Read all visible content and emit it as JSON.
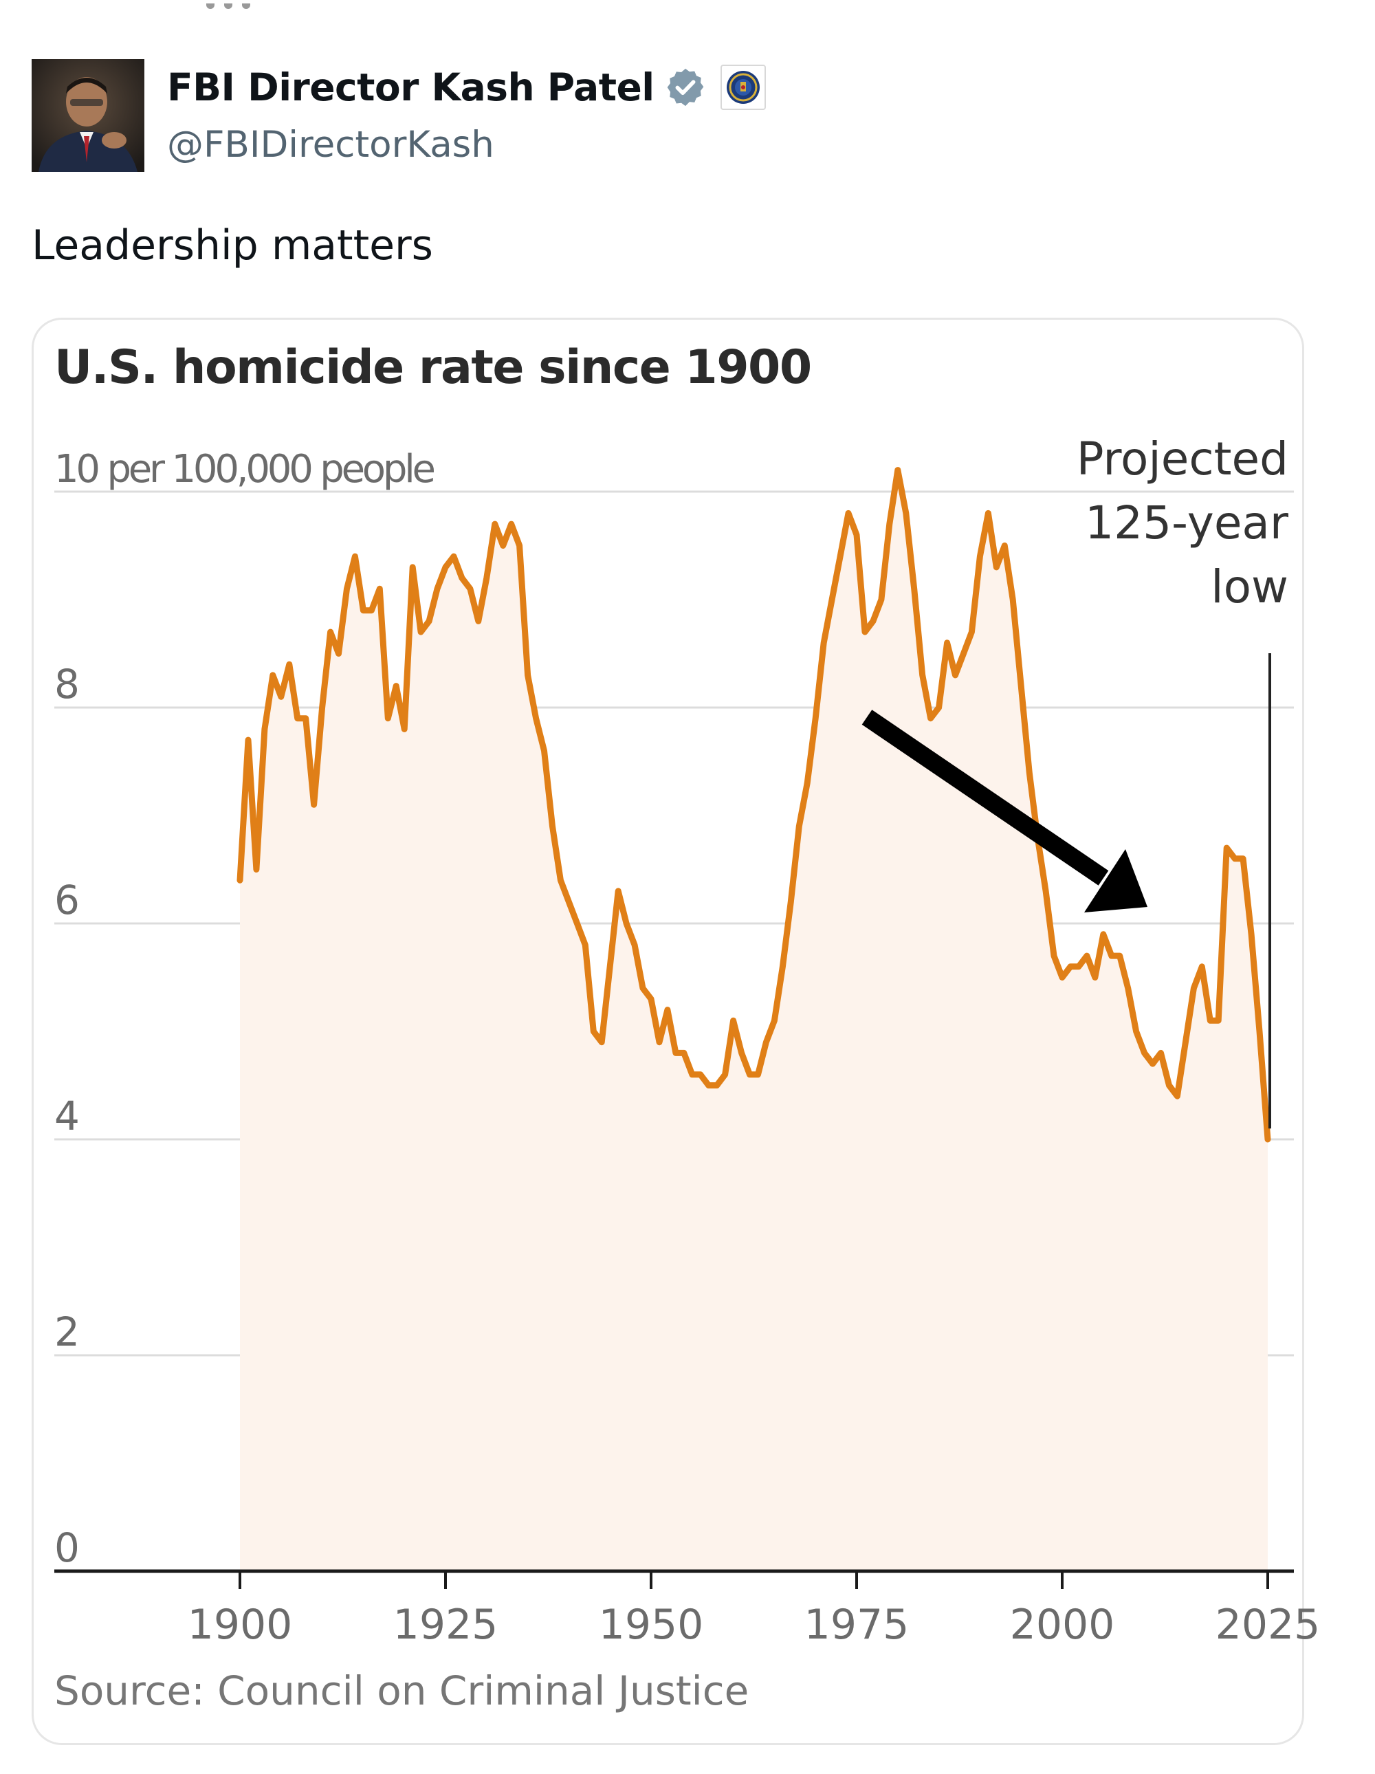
{
  "post": {
    "author_name": "FBI Director Kash Patel",
    "handle": "@FBIDirectorKash",
    "text": "Leadership matters",
    "verified_icon": "verified-badge-icon",
    "affiliate_icon": "fbi-seal-icon",
    "verified_color": "#829aab"
  },
  "chart": {
    "title": "U.S. homicide rate since 1900",
    "source": "Source: Council on Criminal Justice",
    "annotation": [
      "Projected",
      "125-year",
      "low"
    ]
  },
  "chart_data": {
    "type": "area",
    "title": "U.S. homicide rate since 1900",
    "ylabel": "10 per 100,000 people",
    "ylim": [
      0,
      10
    ],
    "yticks": [
      0,
      2,
      4,
      6,
      8,
      10
    ],
    "ytick_labels": [
      "0",
      "2",
      "4",
      "6",
      "8",
      "10 per 100,000 people"
    ],
    "xlim": [
      1882,
      2030
    ],
    "xticks": [
      1900,
      1925,
      1950,
      1975,
      2000,
      2025
    ],
    "grid": true,
    "line_color": "#e07f17",
    "fill_color": "#fdf3ec",
    "x": [
      1900,
      1901,
      1902,
      1903,
      1904,
      1905,
      1906,
      1907,
      1908,
      1909,
      1910,
      1911,
      1912,
      1913,
      1914,
      1915,
      1916,
      1917,
      1918,
      1919,
      1920,
      1921,
      1922,
      1923,
      1924,
      1925,
      1926,
      1927,
      1928,
      1929,
      1930,
      1931,
      1932,
      1933,
      1934,
      1935,
      1936,
      1937,
      1938,
      1939,
      1940,
      1941,
      1942,
      1943,
      1944,
      1945,
      1946,
      1947,
      1948,
      1949,
      1950,
      1951,
      1952,
      1953,
      1954,
      1955,
      1956,
      1957,
      1958,
      1959,
      1960,
      1961,
      1962,
      1963,
      1964,
      1965,
      1966,
      1967,
      1968,
      1969,
      1970,
      1971,
      1972,
      1973,
      1974,
      1975,
      1976,
      1977,
      1978,
      1979,
      1980,
      1981,
      1982,
      1983,
      1984,
      1985,
      1986,
      1987,
      1988,
      1989,
      1990,
      1991,
      1992,
      1993,
      1994,
      1995,
      1996,
      1997,
      1998,
      1999,
      2000,
      2001,
      2002,
      2003,
      2004,
      2005,
      2006,
      2007,
      2008,
      2009,
      2010,
      2011,
      2012,
      2013,
      2014,
      2015,
      2016,
      2017,
      2018,
      2019,
      2020,
      2021,
      2022,
      2023,
      2024,
      2025
    ],
    "series": [
      {
        "values": [
          6.4,
          7.7,
          6.5,
          7.8,
          8.3,
          8.1,
          8.4,
          7.9,
          7.9,
          7.1,
          8.0,
          8.7,
          8.5,
          9.1,
          9.4,
          8.9,
          8.9,
          9.1,
          7.9,
          8.2,
          7.8,
          9.3,
          8.7,
          8.8,
          9.1,
          9.3,
          9.4,
          9.2,
          9.1,
          8.8,
          9.2,
          9.7,
          9.5,
          9.7,
          9.5,
          8.3,
          7.9,
          7.6,
          6.9,
          6.4,
          6.2,
          6.0,
          5.8,
          5.0,
          4.9,
          5.6,
          6.3,
          6.0,
          5.8,
          5.4,
          5.3,
          4.9,
          5.2,
          4.8,
          4.8,
          4.6,
          4.6,
          4.5,
          4.5,
          4.6,
          5.1,
          4.8,
          4.6,
          4.6,
          4.9,
          5.1,
          5.6,
          6.2,
          6.9,
          7.3,
          7.9,
          8.6,
          9.0,
          9.4,
          9.8,
          9.6,
          8.7,
          8.8,
          9.0,
          9.7,
          10.2,
          9.8,
          9.1,
          8.3,
          7.9,
          8.0,
          8.6,
          8.3,
          8.5,
          8.7,
          9.4,
          9.8,
          9.3,
          9.5,
          9.0,
          8.2,
          7.4,
          6.8,
          6.3,
          5.7,
          5.5,
          5.6,
          5.6,
          5.7,
          5.5,
          5.9,
          5.7,
          5.7,
          5.4,
          5.0,
          4.8,
          4.7,
          4.8,
          4.5,
          4.4,
          4.9,
          5.4,
          5.6,
          5.1,
          5.1,
          6.7,
          6.6,
          6.6,
          5.9,
          5.0,
          4.0
        ]
      }
    ]
  }
}
